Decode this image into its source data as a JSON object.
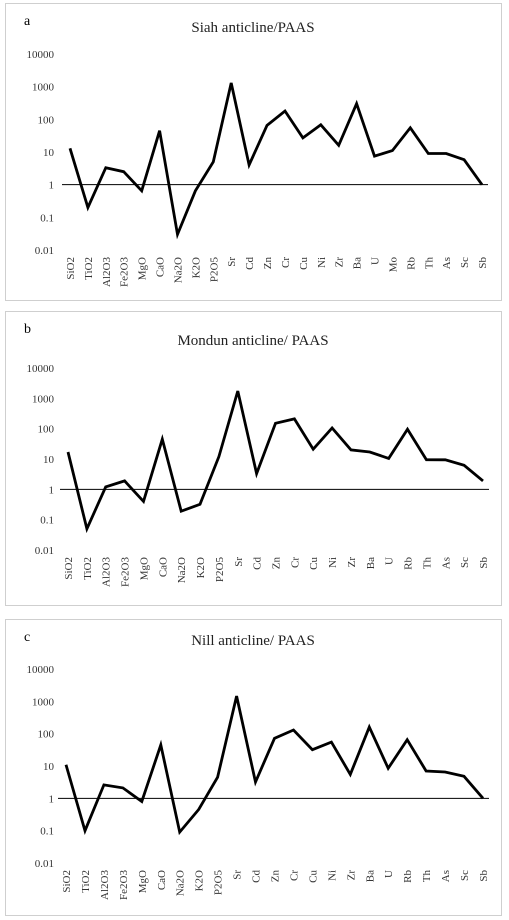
{
  "chart_data": [
    {
      "type": "line",
      "panel_letter": "a",
      "title": "Siah anticline/PAAS",
      "y_scale": "log",
      "ylim": [
        0.01,
        10000
      ],
      "y_ticks": [
        "10000",
        "1000",
        "100",
        "10",
        "1",
        "0.1",
        "0.01"
      ],
      "reference_line": 1,
      "grid": false,
      "categories": [
        "SiO2",
        "TiO2",
        "Al2O3",
        "Fe2O3",
        "MgO",
        "CaO",
        "Na2O",
        "K2O",
        "P2O5",
        "Sr",
        "Cd",
        "Zn",
        "Cr",
        "Cu",
        "Ni",
        "Zr",
        "Ba",
        "U",
        "Mo",
        "Rb",
        "Th",
        "As",
        "Sc",
        "Sb"
      ],
      "values": [
        13,
        0.2,
        3.3,
        2.5,
        0.65,
        45,
        0.03,
        0.65,
        5,
        1300,
        4,
        65,
        180,
        27,
        68,
        16,
        300,
        7.5,
        11,
        55,
        9,
        9,
        5.8,
        1
      ]
    },
    {
      "type": "line",
      "panel_letter": "b",
      "title": "Mondun anticline/ PAAS",
      "y_scale": "log",
      "ylim": [
        0.01,
        10000
      ],
      "y_ticks": [
        "10000",
        "1000",
        "100",
        "10",
        "1",
        "0.1",
        "0.01"
      ],
      "reference_line": 1,
      "grid": false,
      "categories": [
        "SiO2",
        "TiO2",
        "Al2O3",
        "Fe2O3",
        "MgO",
        "CaO",
        "Na2O",
        "K2O",
        "P2O5",
        "Sr",
        "Cd",
        "Zn",
        "Cr",
        "Cu",
        "Ni",
        "Zr",
        "Ba",
        "U",
        "Rb",
        "Th",
        "As",
        "Sc",
        "Sb"
      ],
      "values": [
        17,
        0.05,
        1.2,
        1.9,
        0.4,
        45,
        0.19,
        0.32,
        12,
        1750,
        3.3,
        150,
        210,
        21,
        105,
        20,
        17,
        10.5,
        95,
        9.5,
        9.4,
        6.2,
        1.9
      ]
    },
    {
      "type": "line",
      "panel_letter": "c",
      "title": "Nill anticline/ PAAS",
      "y_scale": "log",
      "ylim": [
        0.01,
        10000
      ],
      "y_ticks": [
        "10000",
        "1000",
        "100",
        "10",
        "1",
        "0.1",
        "0.01"
      ],
      "reference_line": 1,
      "grid": false,
      "categories": [
        "SiO2",
        "TiO2",
        "Al2O3",
        "Fe2O3",
        "MgO",
        "CaO",
        "Na2O",
        "K2O",
        "P2O5",
        "Sr",
        "Cd",
        "Zn",
        "Cr",
        "Cu",
        "Ni",
        "Zr",
        "Ba",
        "U",
        "Rb",
        "Th",
        "As",
        "Sc",
        "Sb"
      ],
      "values": [
        11,
        0.1,
        2.6,
        2.1,
        0.8,
        45,
        0.09,
        0.45,
        4.5,
        1450,
        3.2,
        72,
        130,
        32,
        55,
        5.5,
        160,
        8.5,
        65,
        7,
        6.5,
        4.8,
        1
      ]
    }
  ]
}
